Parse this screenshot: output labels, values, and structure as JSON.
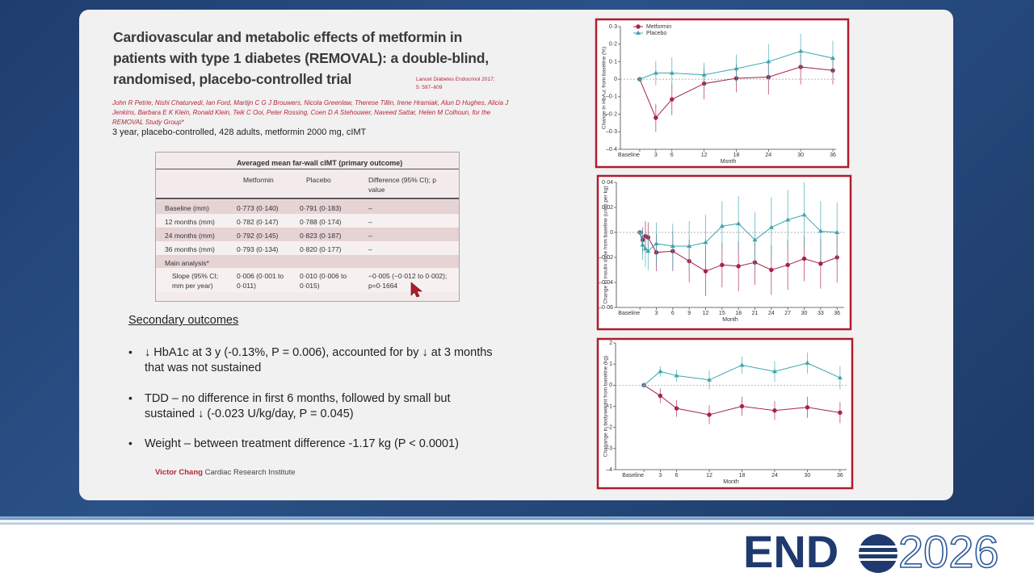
{
  "slide": {
    "title": "Cardiovascular and metabolic effects of metformin in patients with type 1 diabetes (REMOVAL): a double-blind, randomised, placebo-controlled trial",
    "citation": "Lancet Diabetes Endocrinol 2017; 5: 597–609",
    "authors": "John R Petrie, Nishi Chaturvedi, Ian Ford, Martijn C G J Brouwers, Nicola Greenlaw, Therese Tillin, Irene Hramiak, Alun D Hughes, Alicia J Jenkins, Barbara E K Klein, Ronald Klein, Teik C Ooi, Peter Rossing, Coen D A Stehouwer, Naveed Sattar, Helen M Colhoun, for the REMOVAL Study Group*",
    "summary": "3 year, placebo-controlled, 428 adults, metformin 2000 mg, cIMT",
    "table": {
      "title": "Averaged mean far-wall cIMT (primary outcome)",
      "columns": [
        "Metformin",
        "Placebo",
        "Difference (95% CI); p value"
      ],
      "rows": [
        {
          "label": "Baseline (mm)",
          "cells": [
            "0·773 (0·140)",
            "0·791 (0·183)",
            "–"
          ]
        },
        {
          "label": "12 months (mm)",
          "cells": [
            "0·782 (0·147)",
            "0·788 (0·174)",
            "–"
          ]
        },
        {
          "label": "24 months (mm)",
          "cells": [
            "0·792 (0·145)",
            "0·823 (0·187)",
            "–"
          ]
        },
        {
          "label": "36 months (mm)",
          "cells": [
            "0·793 (0·134)",
            "0·820 (0·177)",
            "–"
          ]
        },
        {
          "label": "Main analysis*"
        },
        {
          "label": "Slope (95% CI; mm per year)",
          "cells": [
            "0·006 (0·001 to 0·011)",
            "0·010 (0·006 to 0·015)",
            "−0·005 (−0·012 to 0·002); p=0·1664"
          ]
        }
      ]
    },
    "secondary_heading": "Secondary outcomes",
    "bullets": [
      "↓ HbA1c at 3 y (-0.13%, P = 0.006), accounted for by ↓ at 3 months that was not sustained",
      "TDD – no difference in first 6 months, followed by small but sustained ↓ (-0.023 U/kg/day, P = 0.045)",
      "Weight – between treatment difference -1.17 kg (P < 0.0001)"
    ],
    "footer": {
      "bold": "Victor Chang",
      "rest": "Cardiac Research Institute"
    }
  },
  "logo": {
    "left": "END",
    "right": "2026"
  },
  "chart_data": [
    {
      "type": "line",
      "legend": "upper left",
      "y_label": "Change in HbA₁c from baseline (%)",
      "x_label": "Month",
      "xlim": [
        -3.6,
        36.6
      ],
      "ylim": [
        -0.4,
        0.3
      ],
      "xticks": [
        {
          "value": 0,
          "label": "Baseline"
        },
        3,
        6,
        12,
        18,
        24,
        30,
        36
      ],
      "yticks": [
        {
          "value": 0.3,
          "label": "0·3"
        },
        {
          "value": 0.2,
          "label": "0·2"
        },
        {
          "value": 0.1,
          "label": "0·1"
        },
        0,
        {
          "value": -0.1,
          "label": "–0·1"
        },
        {
          "value": -0.2,
          "label": "–0·2"
        },
        {
          "value": -0.3,
          "label": "–0·3"
        },
        {
          "value": -0.4,
          "label": "–0·4"
        }
      ],
      "x": [
        0,
        3,
        6,
        12,
        18,
        24,
        30,
        36
      ],
      "series": [
        {
          "name": "Metformin",
          "color": "#a8214d",
          "marker": "circle",
          "values": [
            0,
            -0.22,
            -0.115,
            -0.025,
            0.005,
            0.012,
            0.07,
            0.05
          ],
          "errors": [
            0,
            0.08,
            0.09,
            0.09,
            0.08,
            0.1,
            0.1,
            0.08
          ]
        },
        {
          "name": "Placebo",
          "color": "#3aa6ae",
          "marker": "triangle",
          "values": [
            0,
            0.035,
            0.035,
            0.025,
            0.06,
            0.1,
            0.16,
            0.12
          ],
          "errors": [
            0,
            0.07,
            0.09,
            0.07,
            0.08,
            0.1,
            0.1,
            0.1
          ]
        }
      ]
    },
    {
      "type": "line",
      "y_label": "Change in insulin dose from baseline (units per kg)",
      "x_label": "Month",
      "xlim": [
        -4.3,
        37.3
      ],
      "ylim": [
        -0.06,
        0.04
      ],
      "xticks": [
        {
          "value": 0,
          "label": "Baseline"
        },
        3,
        6,
        9,
        12,
        15,
        18,
        21,
        24,
        27,
        30,
        33,
        36
      ],
      "yticks": [
        {
          "value": 0.04,
          "label": "0·04"
        },
        {
          "value": 0.02,
          "label": "0·02"
        },
        0,
        {
          "value": -0.02,
          "label": "–0·02"
        },
        {
          "value": -0.04,
          "label": "–0·04"
        },
        {
          "value": -0.06,
          "label": "–0·06"
        }
      ],
      "x": [
        0,
        0.5,
        1,
        1.5,
        3,
        6,
        9,
        12,
        15,
        18,
        21,
        24,
        27,
        30,
        33,
        36
      ],
      "series": [
        {
          "color": "#a8214d",
          "marker": "circle",
          "values": [
            0,
            -0.006,
            -0.003,
            -0.004,
            -0.016,
            -0.015,
            -0.023,
            -0.031,
            -0.026,
            -0.027,
            -0.024,
            -0.03,
            -0.026,
            -0.021,
            -0.025,
            -0.02
          ],
          "errors": [
            0,
            0.01,
            0.012,
            0.012,
            0.015,
            0.016,
            0.017,
            0.02,
            0.018,
            0.02,
            0.018,
            0.02,
            0.02,
            0.018,
            0.02,
            0.02
          ]
        },
        {
          "color": "#3aa6ae",
          "marker": "triangle",
          "values": [
            0,
            -0.01,
            -0.013,
            -0.015,
            -0.009,
            -0.011,
            -0.011,
            -0.008,
            0.005,
            0.007,
            -0.006,
            0.004,
            0.01,
            0.014,
            0.001,
            0
          ],
          "errors": [
            0,
            0.012,
            0.015,
            0.015,
            0.017,
            0.018,
            0.02,
            0.022,
            0.02,
            0.022,
            0.022,
            0.024,
            0.024,
            0.026,
            0.024,
            0.024
          ]
        }
      ]
    },
    {
      "type": "line",
      "y_label": "Chagange in bodyweight from baseline (kg)",
      "x_label": "Month",
      "xlim": [
        -5.2,
        37.2
      ],
      "ylim": [
        -4,
        2
      ],
      "xticks": [
        {
          "value": 0,
          "label": "Baseline"
        },
        3,
        6,
        12,
        18,
        24,
        30,
        36
      ],
      "yticks": [
        2,
        1,
        0,
        {
          "value": -1,
          "label": "–1"
        },
        {
          "value": -2,
          "label": "–2"
        },
        {
          "value": -3,
          "label": "–3"
        },
        {
          "value": -4,
          "label": "–4"
        }
      ],
      "x": [
        0,
        3,
        6,
        12,
        18,
        24,
        30,
        36
      ],
      "series": [
        {
          "color": "#a8214d",
          "marker": "circle",
          "values": [
            0,
            -0.5,
            -1.1,
            -1.4,
            -1.0,
            -1.2,
            -1.05,
            -1.3
          ],
          "errors": [
            0,
            0.35,
            0.4,
            0.45,
            0.45,
            0.45,
            0.5,
            0.5
          ]
        },
        {
          "color": "#3aa6ae",
          "marker": "triangle",
          "values": [
            0,
            0.65,
            0.45,
            0.25,
            0.95,
            0.65,
            1.05,
            0.35
          ],
          "errors": [
            0,
            0.25,
            0.3,
            0.45,
            0.4,
            0.5,
            0.5,
            0.55
          ]
        }
      ]
    }
  ]
}
